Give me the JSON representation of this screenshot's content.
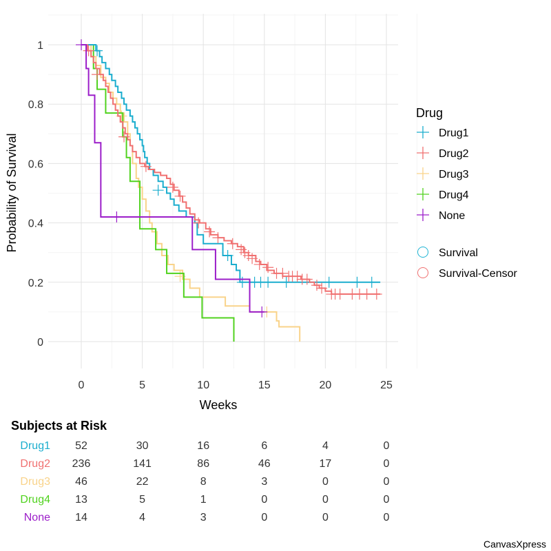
{
  "chart_data": {
    "type": "line",
    "subtype": "kaplan-meier",
    "xlabel": "Weeks",
    "ylabel": "Probability of Survival",
    "xlim": [
      -2.7,
      25
    ],
    "ylim": [
      -0.1,
      1.1
    ],
    "xticks": [
      0,
      5,
      10,
      15,
      20,
      25
    ],
    "yticks": [
      0,
      0.2,
      0.4,
      0.6,
      0.8,
      1
    ],
    "ytick_labels": [
      "0",
      "0.2",
      "0.4",
      "0.6",
      "0.8",
      "1"
    ],
    "grid": true,
    "legend": {
      "title": "Drug",
      "placement": "right",
      "groups": [
        "Drug1",
        "Drug2",
        "Drug3",
        "Drug4",
        "None"
      ],
      "shapes": [
        {
          "label": "Survival",
          "color": "#1EB4D4"
        },
        {
          "label": "Survival-Censor",
          "color": "#F07070"
        }
      ]
    },
    "series": [
      {
        "name": "Drug1",
        "color": "#1AADCE",
        "steps": [
          [
            0,
            1
          ],
          [
            1.2,
            0.98
          ],
          [
            1.5,
            0.96
          ],
          [
            1.7,
            0.94
          ],
          [
            2,
            0.92
          ],
          [
            2.3,
            0.9
          ],
          [
            2.5,
            0.88
          ],
          [
            2.8,
            0.86
          ],
          [
            3,
            0.84
          ],
          [
            3.3,
            0.82
          ],
          [
            3.5,
            0.8
          ],
          [
            3.7,
            0.78
          ],
          [
            4,
            0.76
          ],
          [
            4.2,
            0.74
          ],
          [
            4.4,
            0.72
          ],
          [
            4.6,
            0.7
          ],
          [
            4.8,
            0.68
          ],
          [
            5,
            0.66
          ],
          [
            5.1,
            0.64
          ],
          [
            5.2,
            0.62
          ],
          [
            5.4,
            0.6
          ],
          [
            5.6,
            0.58
          ],
          [
            5.9,
            0.56
          ],
          [
            6.3,
            0.54
          ],
          [
            6.7,
            0.52
          ],
          [
            7,
            0.5
          ],
          [
            7.3,
            0.48
          ],
          [
            7.6,
            0.46
          ],
          [
            8,
            0.44
          ],
          [
            8.6,
            0.42
          ],
          [
            9.3,
            0.4
          ],
          [
            9.5,
            0.36
          ],
          [
            10,
            0.33
          ],
          [
            11.6,
            0.29
          ],
          [
            12.3,
            0.26
          ],
          [
            12.7,
            0.24
          ],
          [
            13,
            0.2
          ]
        ],
        "end": 24.5,
        "censors": [
          [
            1.3,
            0.98
          ],
          [
            6.3,
            0.51
          ],
          [
            12,
            0.29
          ],
          [
            13.2,
            0.2
          ],
          [
            14.2,
            0.2
          ],
          [
            14.7,
            0.2
          ],
          [
            15.3,
            0.2
          ],
          [
            16.8,
            0.2
          ],
          [
            20.3,
            0.2
          ],
          [
            22.6,
            0.2
          ],
          [
            23.8,
            0.2
          ]
        ]
      },
      {
        "name": "Drug2",
        "color": "#F07070",
        "steps": [
          [
            0,
            1
          ],
          [
            0.5,
            0.98
          ],
          [
            0.8,
            0.96
          ],
          [
            1,
            0.94
          ],
          [
            1.2,
            0.92
          ],
          [
            1.5,
            0.9
          ],
          [
            1.8,
            0.88
          ],
          [
            2,
            0.86
          ],
          [
            2.2,
            0.84
          ],
          [
            2.4,
            0.82
          ],
          [
            2.6,
            0.8
          ],
          [
            2.8,
            0.78
          ],
          [
            3,
            0.76
          ],
          [
            3.2,
            0.74
          ],
          [
            3.4,
            0.72
          ],
          [
            3.6,
            0.7
          ],
          [
            3.8,
            0.68
          ],
          [
            4,
            0.66
          ],
          [
            4.2,
            0.64
          ],
          [
            4.5,
            0.62
          ],
          [
            4.8,
            0.6
          ],
          [
            5.2,
            0.59
          ],
          [
            5.5,
            0.58
          ],
          [
            6,
            0.57
          ],
          [
            6.5,
            0.56
          ],
          [
            7,
            0.55
          ],
          [
            7.3,
            0.53
          ],
          [
            7.6,
            0.51
          ],
          [
            8,
            0.49
          ],
          [
            8.3,
            0.47
          ],
          [
            8.6,
            0.45
          ],
          [
            8.9,
            0.43
          ],
          [
            9.3,
            0.41
          ],
          [
            9.7,
            0.4
          ],
          [
            10.2,
            0.38
          ],
          [
            10.6,
            0.36
          ],
          [
            11.2,
            0.35
          ],
          [
            11.7,
            0.34
          ],
          [
            12.3,
            0.33
          ],
          [
            12.8,
            0.32
          ],
          [
            13.3,
            0.3
          ],
          [
            13.7,
            0.29
          ],
          [
            14.3,
            0.27
          ],
          [
            14.7,
            0.26
          ],
          [
            15.2,
            0.24
          ],
          [
            15.8,
            0.23
          ],
          [
            16.5,
            0.22
          ],
          [
            17.3,
            0.22
          ],
          [
            18,
            0.21
          ],
          [
            18.7,
            0.2
          ],
          [
            19.1,
            0.19
          ],
          [
            19.5,
            0.18
          ],
          [
            20,
            0.17
          ],
          [
            20.5,
            0.16
          ],
          [
            21,
            0.16
          ]
        ],
        "end": 24.5,
        "censors": [
          [
            0.6,
            0.98
          ],
          [
            1.3,
            0.9
          ],
          [
            3.5,
            0.69
          ],
          [
            5.3,
            0.59
          ],
          [
            7.5,
            0.52
          ],
          [
            8.1,
            0.49
          ],
          [
            9.6,
            0.4
          ],
          [
            10.5,
            0.37
          ],
          [
            11.2,
            0.35
          ],
          [
            12.4,
            0.33
          ],
          [
            13.1,
            0.31
          ],
          [
            13.4,
            0.3
          ],
          [
            13.7,
            0.29
          ],
          [
            14,
            0.28
          ],
          [
            14.6,
            0.26
          ],
          [
            15.3,
            0.25
          ],
          [
            16,
            0.23
          ],
          [
            16.5,
            0.23
          ],
          [
            17,
            0.22
          ],
          [
            17.3,
            0.22
          ],
          [
            17.7,
            0.22
          ],
          [
            18.1,
            0.21
          ],
          [
            18.5,
            0.21
          ],
          [
            19.3,
            0.19
          ],
          [
            19.7,
            0.18
          ],
          [
            20.5,
            0.16
          ],
          [
            20.8,
            0.16
          ],
          [
            21.2,
            0.16
          ],
          [
            22.2,
            0.16
          ],
          [
            22.8,
            0.16
          ],
          [
            23.4,
            0.16
          ],
          [
            24.2,
            0.16
          ]
        ]
      },
      {
        "name": "Drug3",
        "color": "#F9D38A",
        "steps": [
          [
            0,
            1
          ],
          [
            0.8,
            0.96
          ],
          [
            1.2,
            0.93
          ],
          [
            1.6,
            0.89
          ],
          [
            2,
            0.87
          ],
          [
            2.3,
            0.84
          ],
          [
            2.6,
            0.82
          ],
          [
            2.9,
            0.8
          ],
          [
            3.2,
            0.77
          ],
          [
            3.5,
            0.74
          ],
          [
            3.8,
            0.7
          ],
          [
            4,
            0.66
          ],
          [
            4.2,
            0.6
          ],
          [
            4.5,
            0.55
          ],
          [
            4.7,
            0.52
          ],
          [
            5,
            0.48
          ],
          [
            5.3,
            0.44
          ],
          [
            5.6,
            0.4
          ],
          [
            5.8,
            0.37
          ],
          [
            6.2,
            0.33
          ],
          [
            6.6,
            0.29
          ],
          [
            7.1,
            0.26
          ],
          [
            7.6,
            0.24
          ],
          [
            8.3,
            0.21
          ],
          [
            8.9,
            0.18
          ],
          [
            9.7,
            0.15
          ],
          [
            11.8,
            0.12
          ],
          [
            13.8,
            0.1
          ],
          [
            16,
            0.07
          ],
          [
            16.2,
            0.05
          ],
          [
            17.9,
            0
          ]
        ],
        "end": 17.9,
        "censors": [
          [
            3.3,
            0.76
          ],
          [
            8.1,
            0.22
          ],
          [
            15.2,
            0.1
          ]
        ]
      },
      {
        "name": "Drug4",
        "color": "#50D21E",
        "steps": [
          [
            0,
            1
          ],
          [
            1,
            0.92
          ],
          [
            1.3,
            0.85
          ],
          [
            2,
            0.77
          ],
          [
            3.4,
            0.69
          ],
          [
            3.7,
            0.62
          ],
          [
            4,
            0.54
          ],
          [
            4.8,
            0.38
          ],
          [
            6.1,
            0.31
          ],
          [
            7,
            0.23
          ],
          [
            8.4,
            0.15
          ],
          [
            9.9,
            0.08
          ],
          [
            12.5,
            0
          ]
        ],
        "end": 12.5,
        "censors": []
      },
      {
        "name": "None",
        "color": "#9B1DC9",
        "steps": [
          [
            0,
            1
          ],
          [
            0.4,
            0.92
          ],
          [
            0.6,
            0.83
          ],
          [
            1.1,
            0.67
          ],
          [
            1.6,
            0.42
          ],
          [
            9.1,
            0.31
          ],
          [
            11,
            0.21
          ],
          [
            13.8,
            0.1
          ]
        ],
        "end": 15,
        "censors": [
          [
            0,
            1
          ],
          [
            2.9,
            0.42
          ],
          [
            14.8,
            0.1
          ]
        ]
      }
    ]
  },
  "risk_table": {
    "title": "Subjects at Risk",
    "times": [
      0,
      5,
      10,
      15,
      20,
      25
    ],
    "rows": [
      {
        "label": "Drug1",
        "color": "#1AADCE",
        "values": [
          52,
          30,
          16,
          6,
          4,
          0
        ]
      },
      {
        "label": "Drug2",
        "color": "#F07070",
        "values": [
          236,
          141,
          86,
          46,
          17,
          0
        ]
      },
      {
        "label": "Drug3",
        "color": "#F9D38A",
        "values": [
          46,
          22,
          8,
          3,
          0,
          0
        ]
      },
      {
        "label": "Drug4",
        "color": "#50D21E",
        "values": [
          13,
          5,
          1,
          0,
          0,
          0
        ]
      },
      {
        "label": "None",
        "color": "#9B1DC9",
        "values": [
          14,
          4,
          3,
          0,
          0,
          0
        ]
      }
    ]
  },
  "credit": "CanvasXpress"
}
